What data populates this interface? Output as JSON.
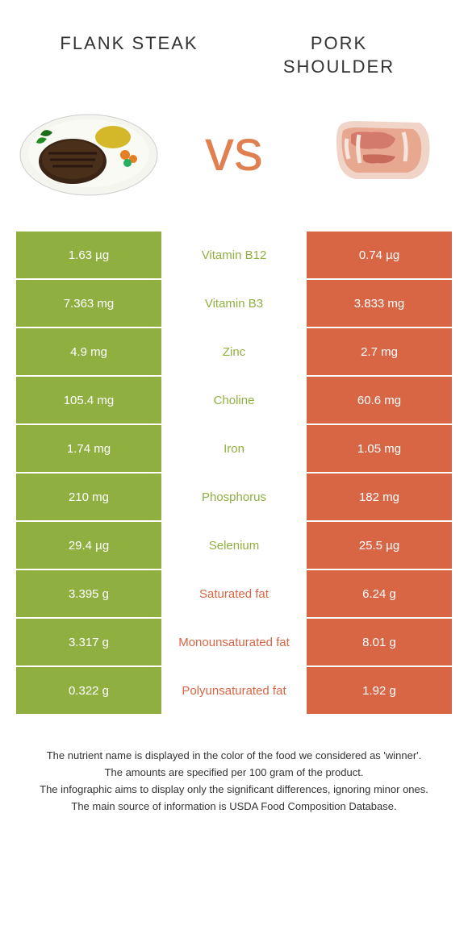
{
  "header": {
    "left_title": "FLANK STEAK",
    "right_title": "PORK SHOULDER",
    "vs": "vs"
  },
  "colors": {
    "left_cell_bg": "#8fb041",
    "right_cell_bg": "#d86645",
    "nutrient_green": "#8fb041",
    "nutrient_red": "#d86645",
    "vs_color": "#e08050"
  },
  "rows": [
    {
      "left": "1.63 µg",
      "nutrient": "Vitamin B12",
      "right": "0.74 µg",
      "winner": "left"
    },
    {
      "left": "7.363 mg",
      "nutrient": "Vitamin B3",
      "right": "3.833 mg",
      "winner": "left"
    },
    {
      "left": "4.9 mg",
      "nutrient": "Zinc",
      "right": "2.7 mg",
      "winner": "left"
    },
    {
      "left": "105.4 mg",
      "nutrient": "Choline",
      "right": "60.6 mg",
      "winner": "left"
    },
    {
      "left": "1.74 mg",
      "nutrient": "Iron",
      "right": "1.05 mg",
      "winner": "left"
    },
    {
      "left": "210 mg",
      "nutrient": "Phosphorus",
      "right": "182 mg",
      "winner": "left"
    },
    {
      "left": "29.4 µg",
      "nutrient": "Selenium",
      "right": "25.5 µg",
      "winner": "left"
    },
    {
      "left": "3.395 g",
      "nutrient": "Saturated fat",
      "right": "6.24 g",
      "winner": "right"
    },
    {
      "left": "3.317 g",
      "nutrient": "Monounsaturated fat",
      "right": "8.01 g",
      "winner": "right"
    },
    {
      "left": "0.322 g",
      "nutrient": "Polyunsaturated fat",
      "right": "1.92 g",
      "winner": "right"
    }
  ],
  "footer": {
    "line1": "The nutrient name is displayed in the color of the food we considered as 'winner'.",
    "line2": "The amounts are specified per 100 gram of the product.",
    "line3": "The infographic aims to display only the significant differences, ignoring minor ones.",
    "line4": "The main source of information is USDA Food Composition Database."
  }
}
